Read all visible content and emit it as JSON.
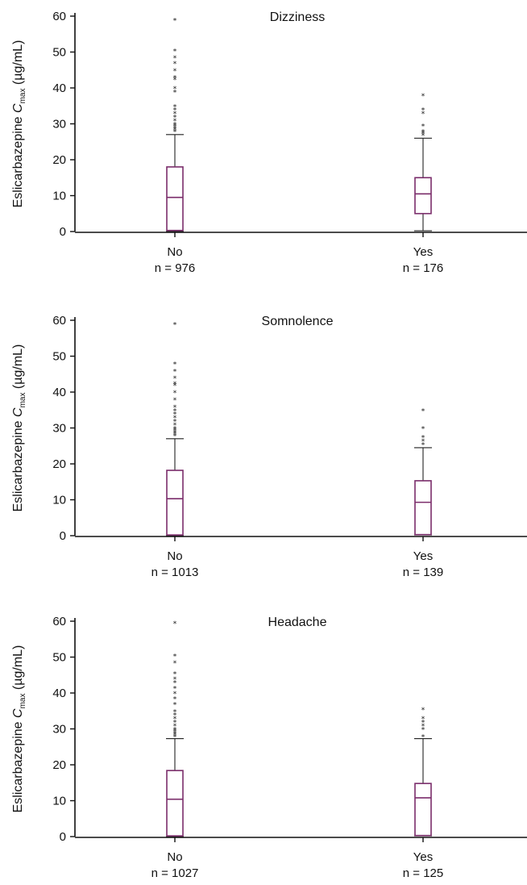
{
  "chart_data": [
    {
      "type": "box",
      "title": "Dizziness",
      "ylabel": {
        "prefix": "Eslicarbazepine ",
        "var": "C",
        "sub": "max",
        "suffix": " (µg/mL)"
      },
      "ylim": [
        0,
        60
      ],
      "yticks": [
        0,
        10,
        20,
        30,
        40,
        50,
        60
      ],
      "groups": [
        {
          "category": "No",
          "n_label": "n = 976",
          "whisker_low": 0,
          "q1": 0.3,
          "median": 9.5,
          "q3": 18,
          "whisker_high": 27,
          "outliers": [
            28,
            28.5,
            29,
            29.5,
            30,
            31,
            32,
            33,
            34,
            35,
            39,
            40,
            42.5,
            43,
            45,
            47,
            48.5,
            50.5,
            59
          ]
        },
        {
          "category": "Yes",
          "n_label": "n = 176",
          "whisker_low": 0.2,
          "q1": 5,
          "median": 10.5,
          "q3": 15,
          "whisker_high": 26,
          "outliers": [
            27,
            27.5,
            28,
            29.5,
            33,
            34,
            38
          ]
        }
      ]
    },
    {
      "type": "box",
      "title": "Somnolence",
      "ylabel": {
        "prefix": "Eslicarbazepine ",
        "var": "C",
        "sub": "max",
        "suffix": " (µg/mL)"
      },
      "ylim": [
        0,
        60
      ],
      "yticks": [
        0,
        10,
        20,
        30,
        40,
        50,
        60
      ],
      "groups": [
        {
          "category": "No",
          "n_label": "n = 1013",
          "whisker_low": 0,
          "q1": 0.2,
          "median": 10.3,
          "q3": 18.2,
          "whisker_high": 27,
          "outliers": [
            28,
            28.5,
            29,
            29.5,
            30,
            31,
            32,
            33,
            34,
            35,
            36,
            38,
            40,
            42,
            42.5,
            44,
            46,
            48,
            59
          ]
        },
        {
          "category": "Yes",
          "n_label": "n = 139",
          "whisker_low": 0.2,
          "q1": 0.3,
          "median": 9.3,
          "q3": 15.3,
          "whisker_high": 24.5,
          "outliers": [
            25.5,
            26.5,
            27.5,
            30,
            35
          ]
        }
      ]
    },
    {
      "type": "box",
      "title": "Headache",
      "ylabel": {
        "prefix": "Eslicarbazepine ",
        "var": "C",
        "sub": "max",
        "suffix": " (µg/mL)"
      },
      "ylim": [
        0,
        60
      ],
      "yticks": [
        0,
        10,
        20,
        30,
        40,
        50,
        60
      ],
      "groups": [
        {
          "category": "No",
          "n_label": "n = 1027",
          "whisker_low": 0,
          "q1": 0.2,
          "median": 10.4,
          "q3": 18.4,
          "whisker_high": 27.3,
          "outliers": [
            28,
            28.5,
            29,
            29.5,
            30,
            31,
            32,
            33,
            34,
            35,
            37,
            38.5,
            40,
            41.5,
            43,
            44,
            45.5,
            48.5,
            50.5,
            59.5
          ]
        },
        {
          "category": "Yes",
          "n_label": "n = 125",
          "whisker_low": 0.2,
          "q1": 0.3,
          "median": 10.8,
          "q3": 14.8,
          "whisker_high": 27.3,
          "outliers": [
            28,
            30,
            31,
            32,
            33,
            35.5
          ]
        }
      ]
    }
  ]
}
